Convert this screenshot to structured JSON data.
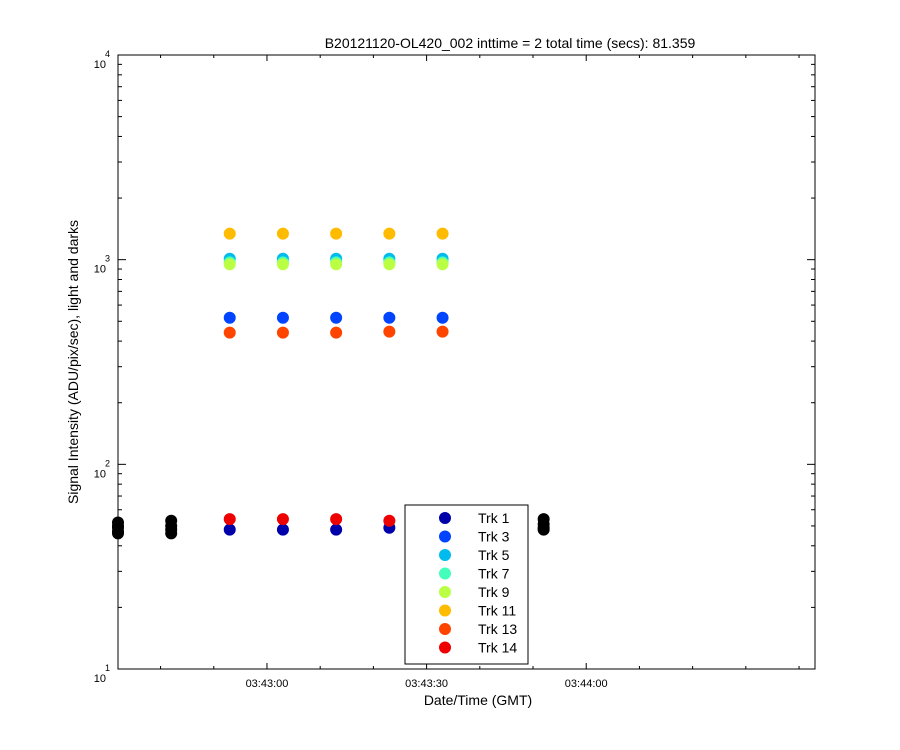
{
  "chart_data": {
    "type": "scatter",
    "title": "B20121120-OL420_002 inttime = 2 total time (secs): 81.359",
    "xlabel": "Date/Time (GMT)",
    "ylabel": "Signal Intensity (ADU/pix/sec), light and darks",
    "x_scale": "time",
    "x_range": [
      "03:42:32",
      "03:44:43"
    ],
    "x_ticks": [
      "03:43:00",
      "03:43:30",
      "03:44:00"
    ],
    "y_scale": "log",
    "ylim": [
      10,
      10000
    ],
    "y_ticks": [
      {
        "base": "10",
        "exp": "1"
      },
      {
        "base": "10",
        "exp": "2"
      },
      {
        "base": "10",
        "exp": "3"
      },
      {
        "base": "10",
        "exp": "4"
      }
    ],
    "grid": false,
    "legend_position": "bottom-center",
    "series": [
      {
        "name": "Trk 1",
        "color": "#0000aa",
        "points": [
          [
            "03:42:53",
            48
          ],
          [
            "03:43:03",
            48
          ],
          [
            "03:43:13",
            48
          ],
          [
            "03:43:23",
            49
          ],
          [
            "03:43:33",
            49
          ]
        ]
      },
      {
        "name": "Trk 3",
        "color": "#0044ff",
        "points": [
          [
            "03:42:53",
            520
          ],
          [
            "03:43:03",
            520
          ],
          [
            "03:43:13",
            520
          ],
          [
            "03:43:23",
            520
          ],
          [
            "03:43:33",
            520
          ]
        ]
      },
      {
        "name": "Trk 5",
        "color": "#00bbee",
        "points": [
          [
            "03:42:53",
            1010
          ],
          [
            "03:43:03",
            1010
          ],
          [
            "03:43:13",
            1010
          ],
          [
            "03:43:23",
            1010
          ],
          [
            "03:43:33",
            1010
          ]
        ]
      },
      {
        "name": "Trk 7",
        "color": "#44ffbb",
        "points": [
          [
            "03:42:53",
            970
          ],
          [
            "03:43:03",
            970
          ],
          [
            "03:43:13",
            970
          ],
          [
            "03:43:23",
            970
          ],
          [
            "03:43:33",
            970
          ]
        ]
      },
      {
        "name": "Trk 9",
        "color": "#bbff44",
        "points": [
          [
            "03:42:53",
            950
          ],
          [
            "03:43:03",
            950
          ],
          [
            "03:43:13",
            950
          ],
          [
            "03:43:23",
            950
          ],
          [
            "03:43:33",
            950
          ]
        ]
      },
      {
        "name": "Trk 11",
        "color": "#ffbb00",
        "points": [
          [
            "03:42:53",
            1340
          ],
          [
            "03:43:03",
            1340
          ],
          [
            "03:43:13",
            1340
          ],
          [
            "03:43:23",
            1340
          ],
          [
            "03:43:33",
            1340
          ]
        ]
      },
      {
        "name": "Trk 13",
        "color": "#ff4400",
        "points": [
          [
            "03:42:53",
            440
          ],
          [
            "03:43:03",
            440
          ],
          [
            "03:43:13",
            440
          ],
          [
            "03:43:23",
            445
          ],
          [
            "03:43:33",
            445
          ]
        ]
      },
      {
        "name": "Trk 14",
        "color": "#ee0000",
        "points": [
          [
            "03:42:53",
            54
          ],
          [
            "03:43:03",
            54
          ],
          [
            "03:43:13",
            54
          ],
          [
            "03:43:23",
            53
          ],
          [
            "03:43:33",
            53
          ]
        ]
      },
      {
        "color": "#000000",
        "points": [
          [
            "03:42:32",
            52
          ],
          [
            "03:42:32",
            50
          ],
          [
            "03:42:32",
            49
          ],
          [
            "03:42:32",
            47
          ],
          [
            "03:42:32",
            46
          ],
          [
            "03:42:42",
            53
          ],
          [
            "03:42:42",
            50
          ],
          [
            "03:42:42",
            48
          ],
          [
            "03:42:42",
            46
          ],
          [
            "03:43:42",
            53
          ],
          [
            "03:43:42",
            50
          ],
          [
            "03:43:42",
            48
          ],
          [
            "03:43:52",
            54
          ],
          [
            "03:43:52",
            51
          ],
          [
            "03:43:52",
            49
          ],
          [
            "03:43:52",
            48
          ]
        ]
      }
    ]
  }
}
